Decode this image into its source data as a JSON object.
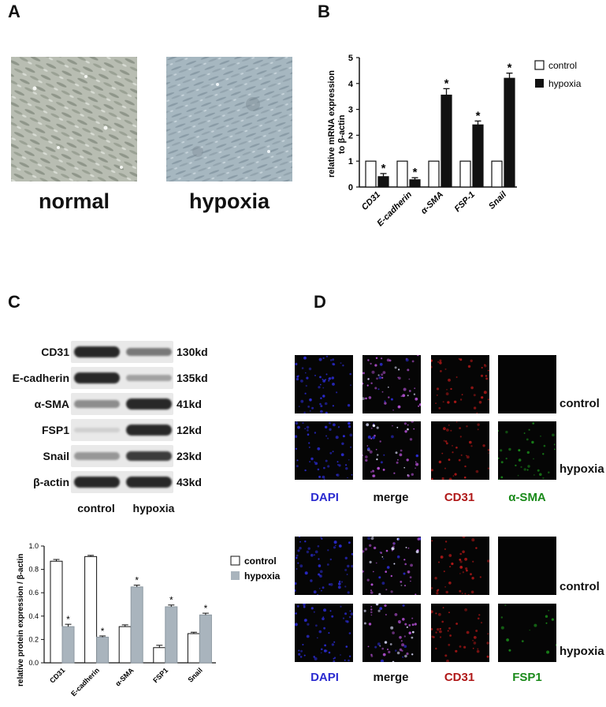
{
  "panel_letters": {
    "a": "A",
    "b": "B",
    "c": "C",
    "d": "D"
  },
  "panelA": {
    "normal_label": "normal",
    "hypoxia_label": "hypoxia"
  },
  "panelB": {
    "legend_control": "control",
    "legend_hypoxia": "hypoxia",
    "ylabel_line1": "relative mRNA expression",
    "ylabel_line2": "to β-actin",
    "significance_marker": "*"
  },
  "panelC": {
    "blot_rows": [
      {
        "name": "CD31",
        "kd": "130kd",
        "control_intensity": 0.95,
        "hypoxia_intensity": 0.55
      },
      {
        "name": "E-cadherin",
        "kd": "135kd",
        "control_intensity": 0.95,
        "hypoxia_intensity": 0.35
      },
      {
        "name": "α-SMA",
        "kd": "41kd",
        "control_intensity": 0.45,
        "hypoxia_intensity": 0.95
      },
      {
        "name": "FSP1",
        "kd": "12kd",
        "control_intensity": 0.12,
        "hypoxia_intensity": 0.95
      },
      {
        "name": "Snail",
        "kd": "23kd",
        "control_intensity": 0.4,
        "hypoxia_intensity": 0.85
      },
      {
        "name": "β-actin",
        "kd": "43kd",
        "control_intensity": 0.95,
        "hypoxia_intensity": 0.95
      }
    ],
    "lane_control": "control",
    "lane_hypoxia": "hypoxia",
    "legend_control": "control",
    "legend_hypoxia": "hypoxia",
    "ylabel": "relative protein expression / β-actin",
    "significance_marker": "*"
  },
  "panelD": {
    "group1": {
      "row_labels": [
        "control",
        "hypoxia"
      ],
      "col_labels": [
        "DAPI",
        "merge",
        "CD31",
        "α-SMA"
      ]
    },
    "group2": {
      "row_labels": [
        "control",
        "hypoxia"
      ],
      "col_labels": [
        "DAPI",
        "merge",
        "CD31",
        "FSP1"
      ]
    },
    "colors": {
      "dapi": "#2b2bd0",
      "cd31": "#b01818",
      "green": "#1a8a1a"
    }
  },
  "chart_data": [
    {
      "type": "bar",
      "panel": "B",
      "categories": [
        "CD31",
        "E-cadherin",
        "α-SMA",
        "FSP-1",
        "Snail"
      ],
      "series": [
        {
          "name": "control",
          "values": [
            1,
            1,
            1,
            1,
            1
          ],
          "color": "#ffffff"
        },
        {
          "name": "hypoxia",
          "values": [
            0.4,
            0.28,
            3.55,
            2.4,
            4.2
          ],
          "errors": [
            0.12,
            0.08,
            0.25,
            0.15,
            0.2
          ],
          "color": "#111111"
        }
      ],
      "significant": [
        true,
        true,
        true,
        true,
        true
      ],
      "ylabel": "relative mRNA expression to β-actin",
      "ylim": [
        0,
        5
      ],
      "yticks": [
        0,
        1,
        2,
        3,
        4,
        5
      ]
    },
    {
      "type": "bar",
      "panel": "C",
      "categories": [
        "CD31",
        "E-cadherin",
        "α-SMA",
        "FSP1",
        "Snail"
      ],
      "series": [
        {
          "name": "control",
          "values": [
            0.87,
            0.91,
            0.31,
            0.13,
            0.25
          ],
          "errors": [
            0.015,
            0.01,
            0.015,
            0.02,
            0.012
          ],
          "color": "#ffffff"
        },
        {
          "name": "hypoxia",
          "values": [
            0.31,
            0.22,
            0.65,
            0.48,
            0.41
          ],
          "errors": [
            0.02,
            0.01,
            0.015,
            0.015,
            0.015
          ],
          "color": "#a9b4bd"
        }
      ],
      "significant": [
        true,
        true,
        true,
        true,
        true
      ],
      "ylabel": "relative protein expression / β-actin",
      "ylim": [
        0,
        1.0
      ],
      "yticks": [
        0.0,
        0.2,
        0.4,
        0.6,
        0.8,
        1.0
      ]
    }
  ]
}
